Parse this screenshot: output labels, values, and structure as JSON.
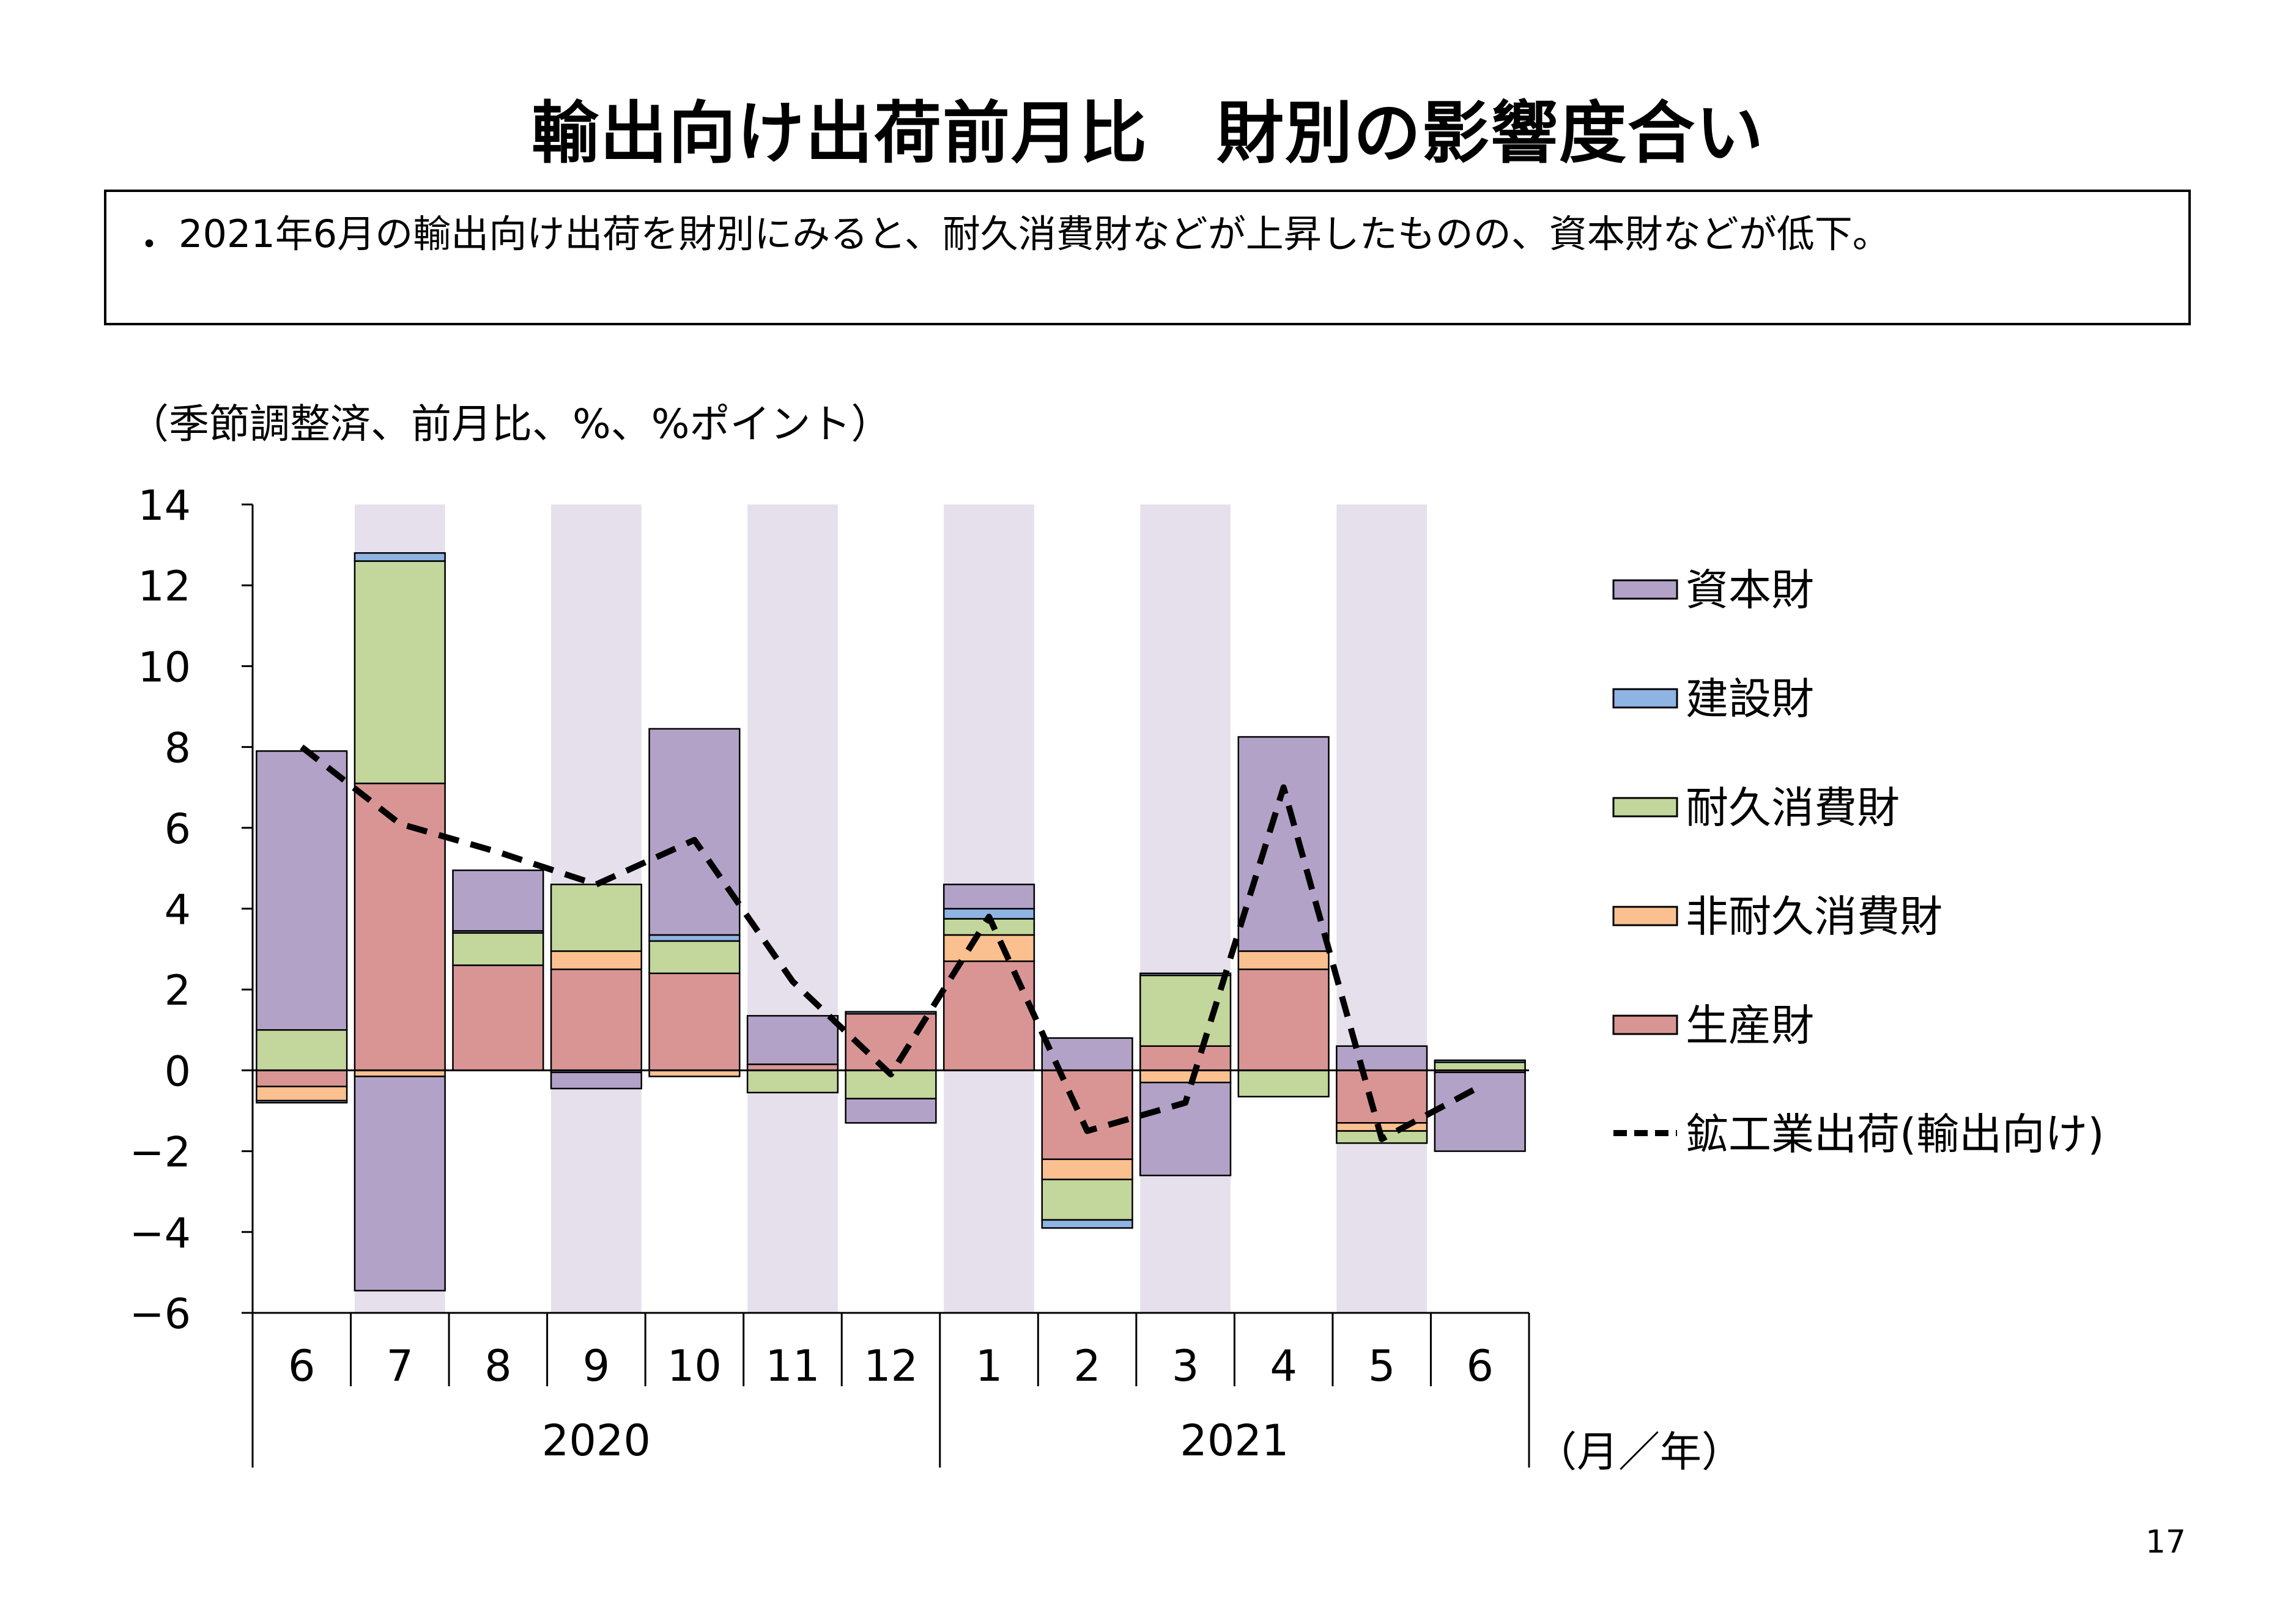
{
  "page": {
    "title": "輸出向け出荷前月比　財別の影響度合い",
    "bullet": "・",
    "summary": "2021年6月の輸出向け出荷を財別にみると、耐久消費財などが上昇したものの、資本財などが低下。",
    "unit_note": "（季節調整済、前月比、%、%ポイント）",
    "page_number": "17"
  },
  "chart_data": {
    "type": "bar",
    "stacked": true,
    "title": "",
    "xlabel": "（月／年）",
    "ylabel": "",
    "ylim": [
      -6,
      14
    ],
    "yticks": [
      14,
      12,
      10,
      8,
      6,
      4,
      2,
      0,
      -2,
      -4,
      -6
    ],
    "ytick_labels": [
      "14",
      "12",
      "10",
      "8",
      "6",
      "4",
      "2",
      "0",
      "−2",
      "−4",
      "−6"
    ],
    "categories": [
      "6",
      "7",
      "8",
      "9",
      "10",
      "11",
      "12",
      "1",
      "2",
      "3",
      "4",
      "5",
      "6"
    ],
    "year_groups": [
      {
        "label": "2020",
        "start": 0,
        "end": 6
      },
      {
        "label": "2021",
        "start": 7,
        "end": 12
      }
    ],
    "shaded_categories": [
      1,
      3,
      5,
      7,
      9,
      11
    ],
    "series": [
      {
        "name": "生産財",
        "color": "#d99594",
        "values": [
          -0.4,
          7.1,
          2.6,
          2.5,
          2.4,
          0.15,
          1.4,
          2.7,
          -2.2,
          0.6,
          2.5,
          -1.3,
          -0.05
        ]
      },
      {
        "name": "非耐久消費財",
        "color": "#fac090",
        "values": [
          -0.35,
          -0.15,
          0.0,
          0.45,
          -0.15,
          0.0,
          0.0,
          0.65,
          -0.5,
          -0.3,
          0.45,
          -0.2,
          0.0
        ]
      },
      {
        "name": "耐久消費財",
        "color": "#c3d69b",
        "values": [
          1.0,
          5.5,
          0.8,
          1.65,
          0.8,
          -0.55,
          -0.7,
          0.4,
          -1.0,
          1.75,
          -0.65,
          -0.3,
          0.2
        ]
      },
      {
        "name": "建設財",
        "color": "#8eb4e3",
        "values": [
          -0.05,
          0.2,
          0.05,
          -0.05,
          0.15,
          0.0,
          0.05,
          0.25,
          -0.2,
          0.05,
          0.0,
          0.0,
          0.05
        ]
      },
      {
        "name": "資本財",
        "color": "#b3a2c7",
        "values": [
          6.9,
          -5.3,
          1.5,
          -0.4,
          5.1,
          1.2,
          -0.6,
          0.6,
          0.8,
          -2.3,
          5.3,
          0.6,
          -1.95
        ]
      }
    ],
    "line": {
      "name": "鉱工業出荷(輸出向け)",
      "color": "#000000",
      "values": [
        8.0,
        6.1,
        5.4,
        4.6,
        5.7,
        2.2,
        -0.1,
        3.8,
        -1.5,
        -0.8,
        7.0,
        -1.7,
        -0.4
      ]
    },
    "legend_order": [
      "資本財",
      "建設財",
      "耐久消費財",
      "非耐久消費財",
      "生産財",
      "鉱工業出荷(輸出向け)"
    ],
    "legend_position": "right"
  }
}
